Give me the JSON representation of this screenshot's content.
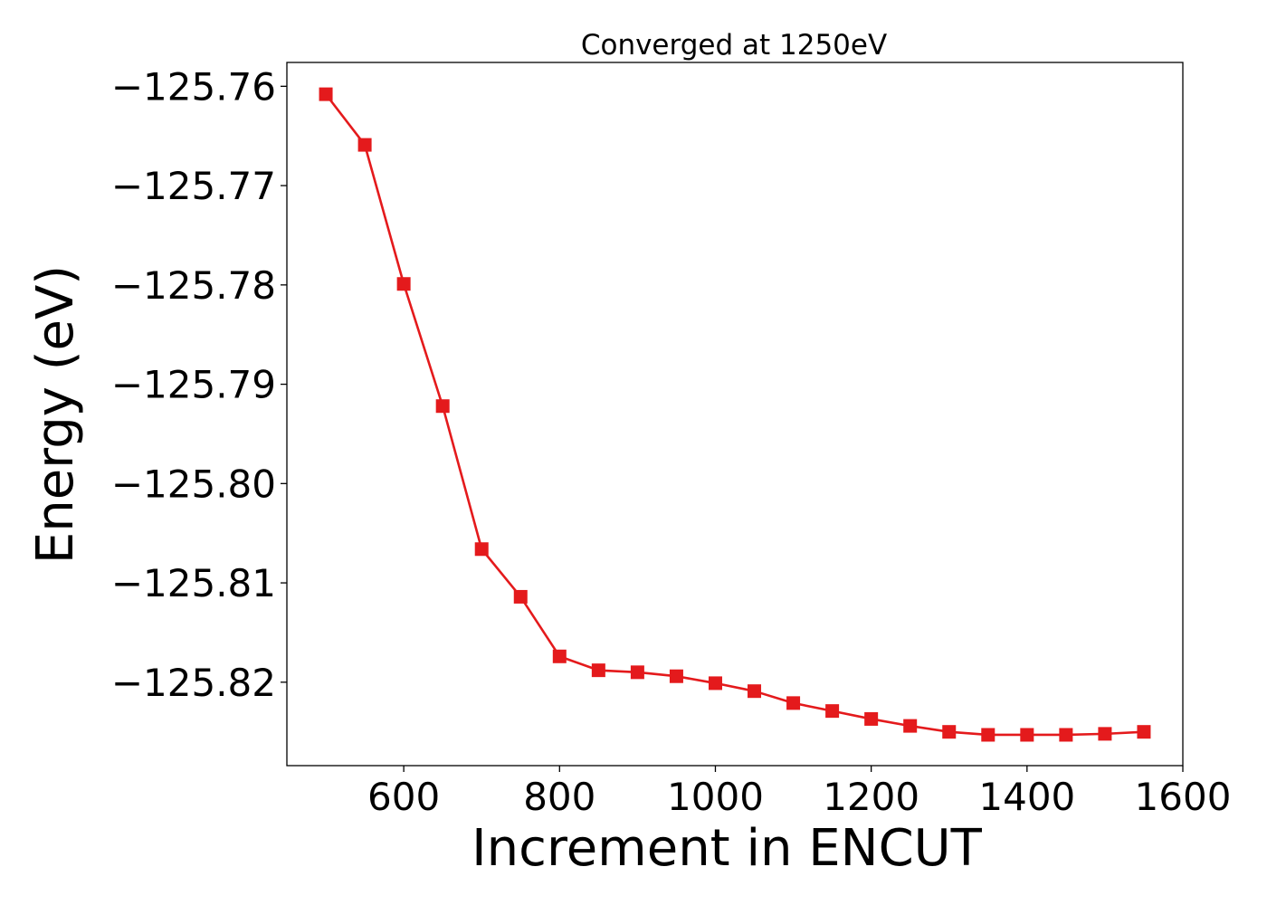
{
  "chart_data": {
    "type": "line",
    "title": "Converged at 1250eV",
    "xlabel": "Increment in ENCUT",
    "ylabel": "Energy (eV)",
    "xlim": [
      450,
      1600
    ],
    "ylim": [
      -125.8284,
      -125.7576
    ],
    "xticks": [
      600,
      800,
      1000,
      1200,
      1400,
      1600
    ],
    "xtick_labels": [
      "600",
      "800",
      "1000",
      "1200",
      "1400",
      "1600"
    ],
    "yticks": [
      -125.76,
      -125.77,
      -125.78,
      -125.79,
      -125.8,
      -125.81,
      -125.82
    ],
    "ytick_labels": [
      "−125.76",
      "−125.77",
      "−125.78",
      "−125.79",
      "−125.80",
      "−125.81",
      "−125.82"
    ],
    "grid": false,
    "series": [
      {
        "marker": "square",
        "color": "#e41a1c",
        "x": [
          500,
          550,
          600,
          650,
          700,
          750,
          800,
          850,
          900,
          950,
          1000,
          1050,
          1100,
          1150,
          1200,
          1250,
          1300,
          1350,
          1400,
          1450,
          1500,
          1550
        ],
        "y": [
          -125.7608,
          -125.7659,
          -125.7799,
          -125.7922,
          -125.8066,
          -125.8114,
          -125.8174,
          -125.8188,
          -125.819,
          -125.8194,
          -125.8201,
          -125.8209,
          -125.8221,
          -125.8229,
          -125.8237,
          -125.8244,
          -125.825,
          -125.8253,
          -125.8253,
          -125.8253,
          -125.8252,
          -125.825
        ]
      }
    ]
  }
}
